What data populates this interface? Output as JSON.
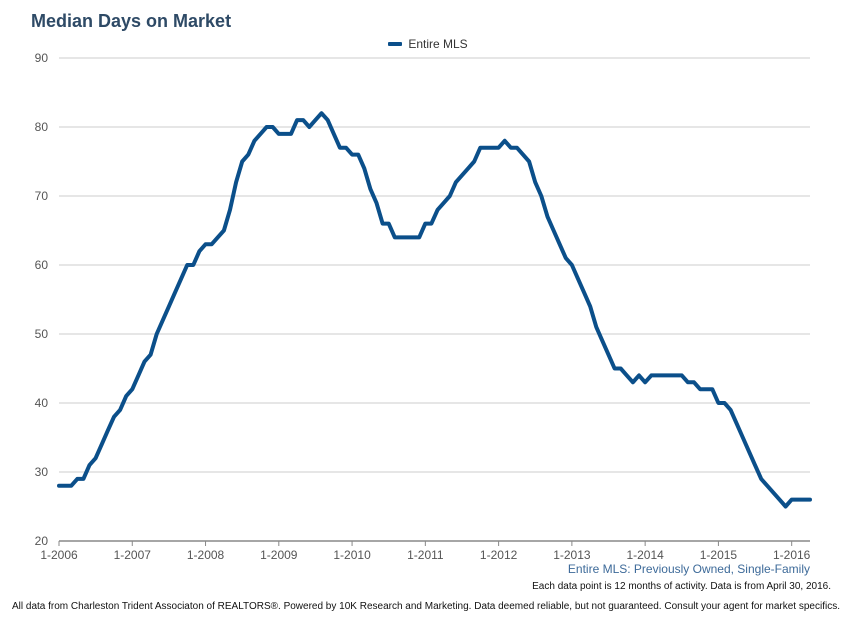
{
  "chart_data": {
    "type": "line",
    "title": "Median Days on Market",
    "subtitle": "Entire MLS: Previously Owned, Single-Family",
    "xlabel": "",
    "ylabel": "",
    "ylim": [
      20,
      90
    ],
    "yticks": [
      20,
      30,
      40,
      50,
      60,
      70,
      80,
      90
    ],
    "xticks": [
      "1-2006",
      "1-2007",
      "1-2008",
      "1-2009",
      "1-2010",
      "1-2011",
      "1-2012",
      "1-2013",
      "1-2014",
      "1-2015",
      "1-2016"
    ],
    "grid": true,
    "legend_position": "top-center",
    "colors": {
      "series": "#0b4f8a",
      "grid": "#cccccc",
      "axis": "#888888"
    },
    "x_start": "1-2006",
    "x_interval": "month",
    "series": [
      {
        "name": "Entire MLS",
        "values": [
          28,
          28,
          28,
          29,
          29,
          31,
          32,
          34,
          36,
          38,
          39,
          41,
          42,
          44,
          46,
          47,
          50,
          52,
          54,
          56,
          58,
          60,
          60,
          62,
          63,
          63,
          64,
          65,
          68,
          72,
          75,
          76,
          78,
          79,
          80,
          80,
          79,
          79,
          79,
          81,
          81,
          80,
          81,
          82,
          81,
          79,
          77,
          77,
          76,
          76,
          74,
          71,
          69,
          66,
          66,
          64,
          64,
          64,
          64,
          64,
          66,
          66,
          68,
          69,
          70,
          72,
          73,
          74,
          75,
          77,
          77,
          77,
          77,
          78,
          77,
          77,
          76,
          75,
          72,
          70,
          67,
          65,
          63,
          61,
          60,
          58,
          56,
          54,
          51,
          49,
          47,
          45,
          45,
          44,
          43,
          44,
          43,
          44,
          44,
          44,
          44,
          44,
          44,
          43,
          43,
          42,
          42,
          42,
          40,
          40,
          39,
          37,
          35,
          33,
          31,
          29,
          28,
          27,
          26,
          25,
          26,
          26,
          26,
          26
        ]
      }
    ]
  },
  "legend": {
    "label": "Entire MLS"
  },
  "notes": {
    "data_point": "Each data point is 12 months of activity. Data is from April 30, 2016.",
    "footer": "All data from Charleston Trident Associaton of REALTORS®. Powered by 10K Research and Marketing. Data deemed reliable, but not guaranteed. Consult your agent for market specifics."
  }
}
